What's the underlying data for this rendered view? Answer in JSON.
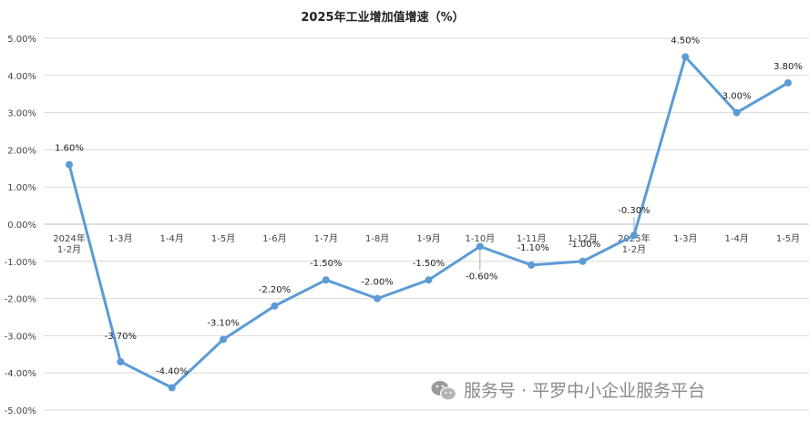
{
  "chart_data": {
    "type": "line",
    "title": "2025年工业增加值增速（%）",
    "xlabel": "",
    "ylabel": "",
    "categories": [
      [
        "2024年",
        "1-2月"
      ],
      [
        "1-3月"
      ],
      [
        "1-4月"
      ],
      [
        "1-5月"
      ],
      [
        "1-6月"
      ],
      [
        "1-7月"
      ],
      [
        "1-8月"
      ],
      [
        "1-9月"
      ],
      [
        "1-10月"
      ],
      [
        "1-11月"
      ],
      [
        "1-12月"
      ],
      [
        "2025年",
        "1-2月"
      ],
      [
        "1-3月"
      ],
      [
        "1-4月"
      ],
      [
        "1-5月"
      ]
    ],
    "series": [
      {
        "values": [
          1.6,
          -3.7,
          -4.4,
          -3.1,
          -2.2,
          -1.5,
          -2.0,
          -1.5,
          -0.6,
          -1.1,
          -1.0,
          -0.3,
          4.5,
          3.0,
          3.8
        ],
        "labels": [
          "1.60%",
          "-3.70%",
          "-4.40%",
          "-3.10%",
          "-2.20%",
          "-1.50%",
          "-2.00%",
          "-1.50%",
          "-0.60%",
          "-1.10%",
          "-1.00%",
          "-0.30%",
          "4.50%",
          "3.00%",
          "3.80%"
        ]
      }
    ],
    "ylim": [
      -5,
      5
    ],
    "yticks": [
      5,
      4,
      3,
      2,
      1,
      0,
      -1,
      -2,
      -3,
      -4,
      -5
    ],
    "ytick_labels": [
      "5.00%",
      "4.00%",
      "3.00%",
      "2.00%",
      "1.00%",
      "0.00%",
      "-1.00%",
      "-2.00%",
      "-3.00%",
      "-4.00%",
      "-5.00%"
    ],
    "grid": true,
    "legend": "none",
    "line_color": "#5b9bd5"
  },
  "watermark": {
    "text": "服务号 · 平罗中小企业服务平台",
    "icon": "wechat-icon"
  }
}
